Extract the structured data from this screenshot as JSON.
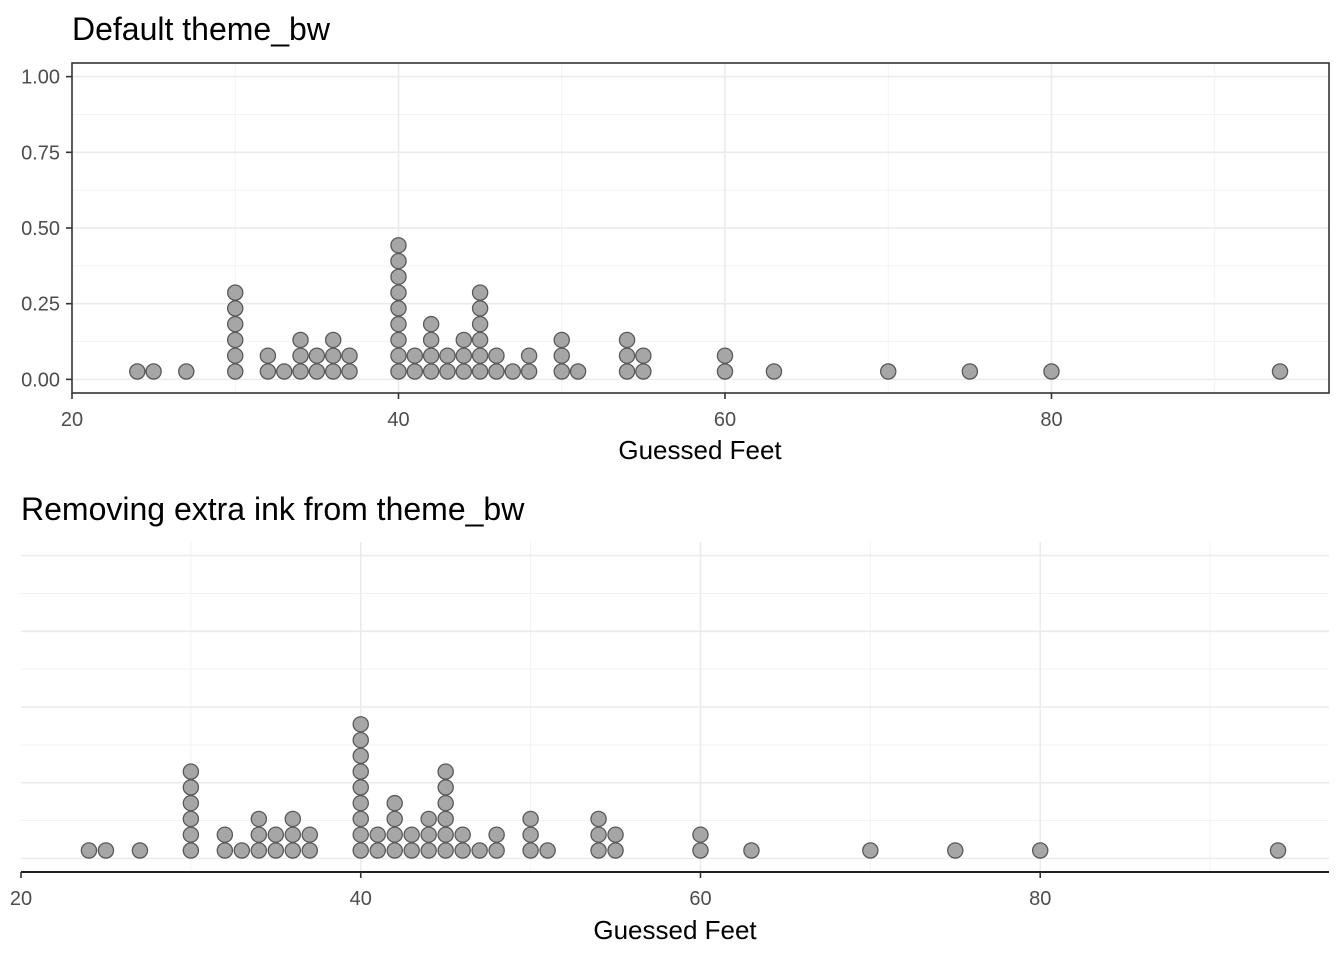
{
  "chart_data": [
    {
      "type": "dotplot",
      "title": "Default theme_bw",
      "xlabel": "Guessed Feet",
      "ylabel": "",
      "xlim": [
        20,
        97
      ],
      "ylim": [
        0,
        1.0
      ],
      "x_ticks": [
        20,
        40,
        60,
        80
      ],
      "x_tick_labels": [
        "20",
        "40",
        "60",
        "80"
      ],
      "y_ticks": [
        0,
        0.25,
        0.5,
        0.75,
        1.0
      ],
      "y_tick_labels": [
        "0.00",
        "0.25",
        "0.50",
        "0.75",
        "1.00"
      ],
      "panel_border": true,
      "grid": true
    },
    {
      "type": "dotplot",
      "title": "Removing extra ink from theme_bw",
      "xlabel": "Guessed Feet",
      "ylabel": "",
      "xlim": [
        20,
        97
      ],
      "ylim": [
        0,
        1.0
      ],
      "x_ticks": [
        20,
        40,
        60,
        80
      ],
      "x_tick_labels": [
        "20",
        "40",
        "60",
        "80"
      ],
      "y_ticks": [],
      "y_tick_labels": [],
      "panel_border": false,
      "grid": true
    }
  ],
  "dots": {
    "dot_fraction": 0.0521,
    "stacks": [
      {
        "x": 24,
        "count": 1
      },
      {
        "x": 25,
        "count": 1
      },
      {
        "x": 27,
        "count": 1
      },
      {
        "x": 30,
        "count": 6
      },
      {
        "x": 32,
        "count": 2
      },
      {
        "x": 33,
        "count": 1
      },
      {
        "x": 34,
        "count": 3
      },
      {
        "x": 35,
        "count": 2
      },
      {
        "x": 36,
        "count": 3
      },
      {
        "x": 37,
        "count": 2
      },
      {
        "x": 40,
        "count": 9
      },
      {
        "x": 41,
        "count": 2
      },
      {
        "x": 42,
        "count": 4
      },
      {
        "x": 43,
        "count": 2
      },
      {
        "x": 44,
        "count": 3
      },
      {
        "x": 45,
        "count": 6
      },
      {
        "x": 46,
        "count": 2
      },
      {
        "x": 47,
        "count": 1
      },
      {
        "x": 48,
        "count": 2
      },
      {
        "x": 50,
        "count": 3
      },
      {
        "x": 51,
        "count": 1
      },
      {
        "x": 54,
        "count": 3
      },
      {
        "x": 55,
        "count": 2
      },
      {
        "x": 60,
        "count": 2
      },
      {
        "x": 63,
        "count": 1
      },
      {
        "x": 70,
        "count": 1
      },
      {
        "x": 75,
        "count": 1
      },
      {
        "x": 80,
        "count": 1
      },
      {
        "x": 94,
        "count": 1
      }
    ]
  }
}
